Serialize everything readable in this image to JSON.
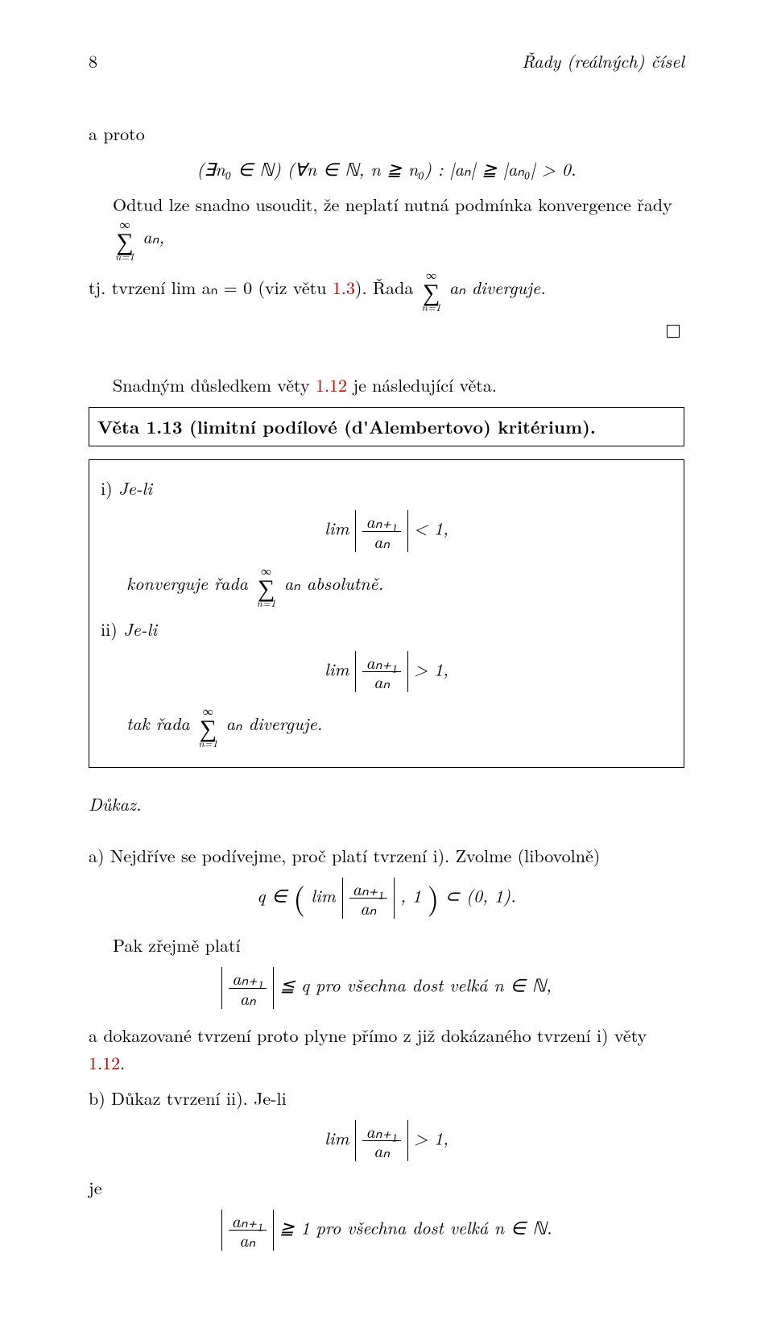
{
  "header": {
    "page_number": "8",
    "chapter_title": "Řady (reálných) čísel"
  },
  "p1": "a proto",
  "disp1": "(∃n₀ ∈ ℕ) (∀n ∈ ℕ,  n ≧ n₀) :  |aₙ| ≧ |aₙ₀| > 0.",
  "p2_a": "Odtud lze snadno usoudit, že neplatí nutná podmínka konvergence řady ",
  "p2_b": "aₙ,",
  "p3_a": "tj. tvrzení lim aₙ = 0 (viz větu ",
  "p3_link": "1.3",
  "p3_b": "). Řada ",
  "p3_c": "aₙ diverguje.",
  "corollary_a": "Snadným důsledkem věty ",
  "corollary_link": "1.12",
  "corollary_b": " je následující věta.",
  "theorem": {
    "label": "Věta 1.13 (limitní podílové (d'Alembertovo) kritérium)."
  },
  "box": {
    "i_label": "i) ",
    "i_text": "Je-li",
    "i_cond_rel": " < 1,",
    "i_concl_a": "konverguje řada ",
    "i_concl_b": "aₙ  absolutně.",
    "ii_label": "ii) ",
    "ii_text": "Je-li",
    "ii_cond_rel": " > 1,",
    "ii_concl_a": "tak řada ",
    "ii_concl_b": "aₙ  diverguje."
  },
  "proof_label": "Důkaz.",
  "a_text": "a) Nejdříve se podívejme, proč platí tvrzení i). Zvolme (libovolně)",
  "q_rel": ", 1",
  "q_tail": " ⊂ (0, 1).",
  "pak": "Pak zřejmě platí",
  "leq_q": " ≦ q  pro všechna dost velká n ∈ ℕ,",
  "a_concl_a": "a dokazované tvrzení proto plyne přímo z již dokázaného tvrzení i) věty ",
  "a_concl_link": "1.12",
  "a_concl_b": ".",
  "b_text": "b) Důkaz tvrzení ii). Je-li",
  "b_rel": " > 1,",
  "je": "je",
  "geq1": " ≧ 1  pro všechna dost velká n ∈ ℕ.",
  "frac": {
    "num": "aₙ₊₁",
    "den": "aₙ"
  },
  "sum": {
    "top": "∞",
    "bot": "n=1"
  },
  "lim": "lim ",
  "q_in": "q ∈ "
}
